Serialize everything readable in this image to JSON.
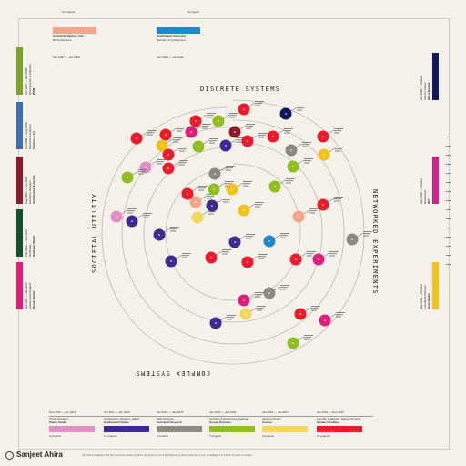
{
  "orbit_labels": {
    "top": "DISCRETE SYSTEMS",
    "right": "NETWORKED EXPERIMENTS",
    "bottom": "COMPLEX SYSTEMS",
    "left": "SOCIETAL UTILITY"
  },
  "top_cards": [
    {
      "date": "Sep 2007 — Jun 2009",
      "line1": "Central St. Martins, UAL",
      "line2": "BA Architecture",
      "color": "#f5a58a",
      "count": "12 projects"
    },
    {
      "date": "Sep 2009 — Jun 2011",
      "line1": "South Bank University",
      "line2": "Bachelor of Architecture",
      "color": "#1e88c8",
      "count": "5 projects"
    }
  ],
  "left_cards": [
    {
      "date": "Jun 2007 — Oct 2008",
      "line1": "Photographer & Engineer",
      "line2": "WSN",
      "color": "#7aa32a",
      "count": "12 projects"
    },
    {
      "date": "Oct 2008 — Aug 2009",
      "line1": "Mechanical Engineer",
      "line2": "Farmers & Co.",
      "color": "#3b6fb0",
      "count": "4 projects"
    },
    {
      "date": "Aug 2009 — Feb 2010",
      "line1": "Exhibition Designer",
      "line2": "Architecture & Design",
      "color": "#8b1a2b",
      "count": "9 projects"
    },
    {
      "date": "Feb 2010 — Sep 2011",
      "line1": "Draftsman",
      "line2": "Holloway Studio",
      "color": "#14522e",
      "count": "3 projects"
    },
    {
      "date": "Sep 2011 — Jan 2012",
      "line1": "Architectural Designer",
      "line2": "Mosaic Studio",
      "color": "#e01e7a",
      "count": "6 projects"
    }
  ],
  "right_cards": [
    {
      "date": "Oct 2008 — Present",
      "line1": "Adjunct Fellow",
      "line2": "UCLA Bartlett",
      "color": "#0f1a5e",
      "count": "3 projects"
    },
    {
      "date": "Sep 2010 — Present",
      "line1": "Researcher",
      "line2": "MIT",
      "color": "#d41f8e",
      "count": "4 projects"
    },
    {
      "date": "Sep 2014 — Present",
      "line1": "Founder & Principal",
      "line2": "Ahira Studio",
      "color": "#f2c21c",
      "count": "8 projects"
    }
  ],
  "bottom_cards": [
    {
      "date": "Dec 2010 — Apr 2011",
      "line1": "Urban Designer",
      "line2": "Pipers Studio",
      "color": "#e08fc4",
      "count": "4 projects"
    },
    {
      "date": "Apr 2011 — Apr 2013",
      "line1": "Architecture, Designer, Maker",
      "line2": "Heatherwick Studio",
      "color": "#3f2a8f",
      "count": "14 projects"
    },
    {
      "date": "Jan 2013 — Jan 2015",
      "line1": "R&D Designer",
      "line2": "Autodesk Research",
      "color": "#8c8a80",
      "count": "6 projects"
    },
    {
      "date": "Jan 2015 — Jan 2016",
      "line1": "Architect & Experience Designer",
      "line2": "Google Robotics",
      "color": "#8fbe1e",
      "count": "7 projects"
    },
    {
      "date": "Jan 2016 — Jan 2017",
      "line1": "Advisory Board",
      "line2": "Aevena",
      "color": "#f4d65a",
      "count": "3 projects"
    },
    {
      "date": "Jan 2014 — Nov 2015",
      "line1": "Founder & Director, Special Projects",
      "line2": "Human Condition",
      "color": "#ea1b2a",
      "count": "10 projects"
    }
  ],
  "footer": {
    "name": "Sanjeet Ahira",
    "quote": "The idea of making is the first and most human of ideas. To explore is more anything more than to describe a way of making; it is merely to make is thought."
  },
  "dots": [
    {
      "color": "#0f1a5e"
    },
    {
      "color": "#ea1b2a"
    },
    {
      "color": "#ea1b2a"
    },
    {
      "color": "#8fbe1e"
    },
    {
      "color": "#8b1a2b"
    },
    {
      "color": "#ea1b2a"
    },
    {
      "color": "#e01e7a"
    },
    {
      "color": "#ea1b2a"
    },
    {
      "color": "#f2c21c"
    },
    {
      "color": "#ea1b2a"
    },
    {
      "color": "#3f2a8f"
    },
    {
      "color": "#ea1b2a"
    },
    {
      "color": "#8fbe1e"
    },
    {
      "color": "#e08fc4"
    },
    {
      "color": "#ea1b2a"
    },
    {
      "color": "#8c8a80"
    },
    {
      "color": "#f2c21c"
    },
    {
      "color": "#8fbe1e"
    },
    {
      "color": "#ea1b2a"
    },
    {
      "color": "#8fbe1e"
    },
    {
      "color": "#ea1b2a"
    },
    {
      "color": "#e08fc4"
    },
    {
      "color": "#3f2a8f"
    },
    {
      "color": "#f4d65a"
    },
    {
      "color": "#f5a58a"
    },
    {
      "color": "#3f2a8f"
    },
    {
      "color": "#f5a58a"
    },
    {
      "color": "#8c8a80"
    },
    {
      "color": "#8fbe1e"
    },
    {
      "color": "#f2c21c"
    },
    {
      "color": "#ea1b2a"
    },
    {
      "color": "#1e88c8"
    },
    {
      "color": "#3f2a8f"
    },
    {
      "color": "#8c8a80"
    },
    {
      "color": "#3f2a8f"
    },
    {
      "color": "#ea1b2a"
    },
    {
      "color": "#ea1b2a"
    },
    {
      "color": "#e01e7a"
    },
    {
      "color": "#8c8a80"
    },
    {
      "color": "#3f2a8f"
    },
    {
      "color": "#ea1b2a"
    },
    {
      "color": "#ea1b2a"
    },
    {
      "color": "#e01e7a"
    },
    {
      "color": "#3f2a8f"
    },
    {
      "color": "#8fbe1e"
    },
    {
      "color": "#f2c21c"
    },
    {
      "color": "#e01e7a"
    },
    {
      "color": "#ea1b2a"
    },
    {
      "color": "#f4d65a"
    },
    {
      "color": "#8fbe1e"
    }
  ]
}
